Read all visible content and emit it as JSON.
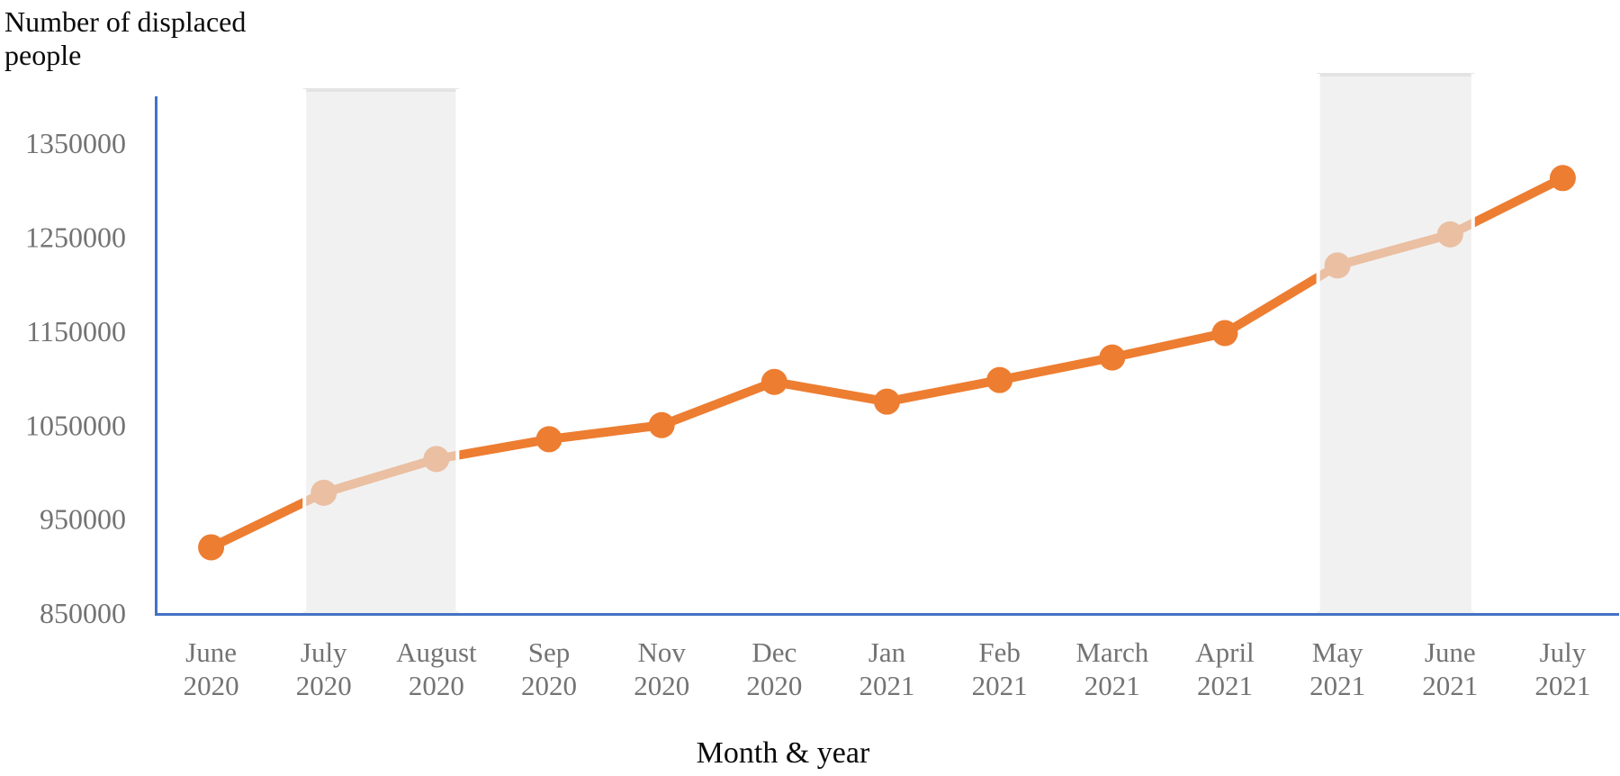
{
  "chart_data": {
    "type": "line",
    "title": "",
    "y_axis_label": "Number of displaced people",
    "x_axis_label": "Month & year",
    "series_name": "Number of displaced people",
    "categories": [
      {
        "month": "June",
        "year": "2020"
      },
      {
        "month": "July",
        "year": "2020"
      },
      {
        "month": "August",
        "year": "2020"
      },
      {
        "month": "Sep",
        "year": "2020"
      },
      {
        "month": "Nov",
        "year": "2020"
      },
      {
        "month": "Dec",
        "year": "2020"
      },
      {
        "month": "Jan",
        "year": "2021"
      },
      {
        "month": "Feb",
        "year": "2021"
      },
      {
        "month": "March",
        "year": "2021"
      },
      {
        "month": "April",
        "year": "2021"
      },
      {
        "month": "May",
        "year": "2021"
      },
      {
        "month": "June",
        "year": "2021"
      },
      {
        "month": "July",
        "year": "2021"
      }
    ],
    "values": [
      920000,
      978000,
      1014000,
      1035000,
      1050000,
      1096000,
      1075000,
      1098000,
      1122000,
      1148000,
      1220000,
      1253000,
      1313000
    ],
    "yticks": [
      1350000,
      1250000,
      1150000,
      1050000,
      950000,
      850000
    ],
    "ylim": [
      850000,
      1400000
    ],
    "grid": false,
    "legend_position": "none",
    "marker": "circle",
    "highlight_bands": [
      {
        "from": "July 2020",
        "to": "August 2020"
      },
      {
        "from": "May 2021",
        "to": "June 2021"
      }
    ],
    "colors": {
      "line": "#ED7D31",
      "marker": "#ED7D31",
      "axis": "#4472C4",
      "tick_labels": "#737373",
      "band_fill": "#E9E9E9",
      "band_top_border": "#E0E0E0",
      "titles": "#0a0a0a"
    }
  }
}
